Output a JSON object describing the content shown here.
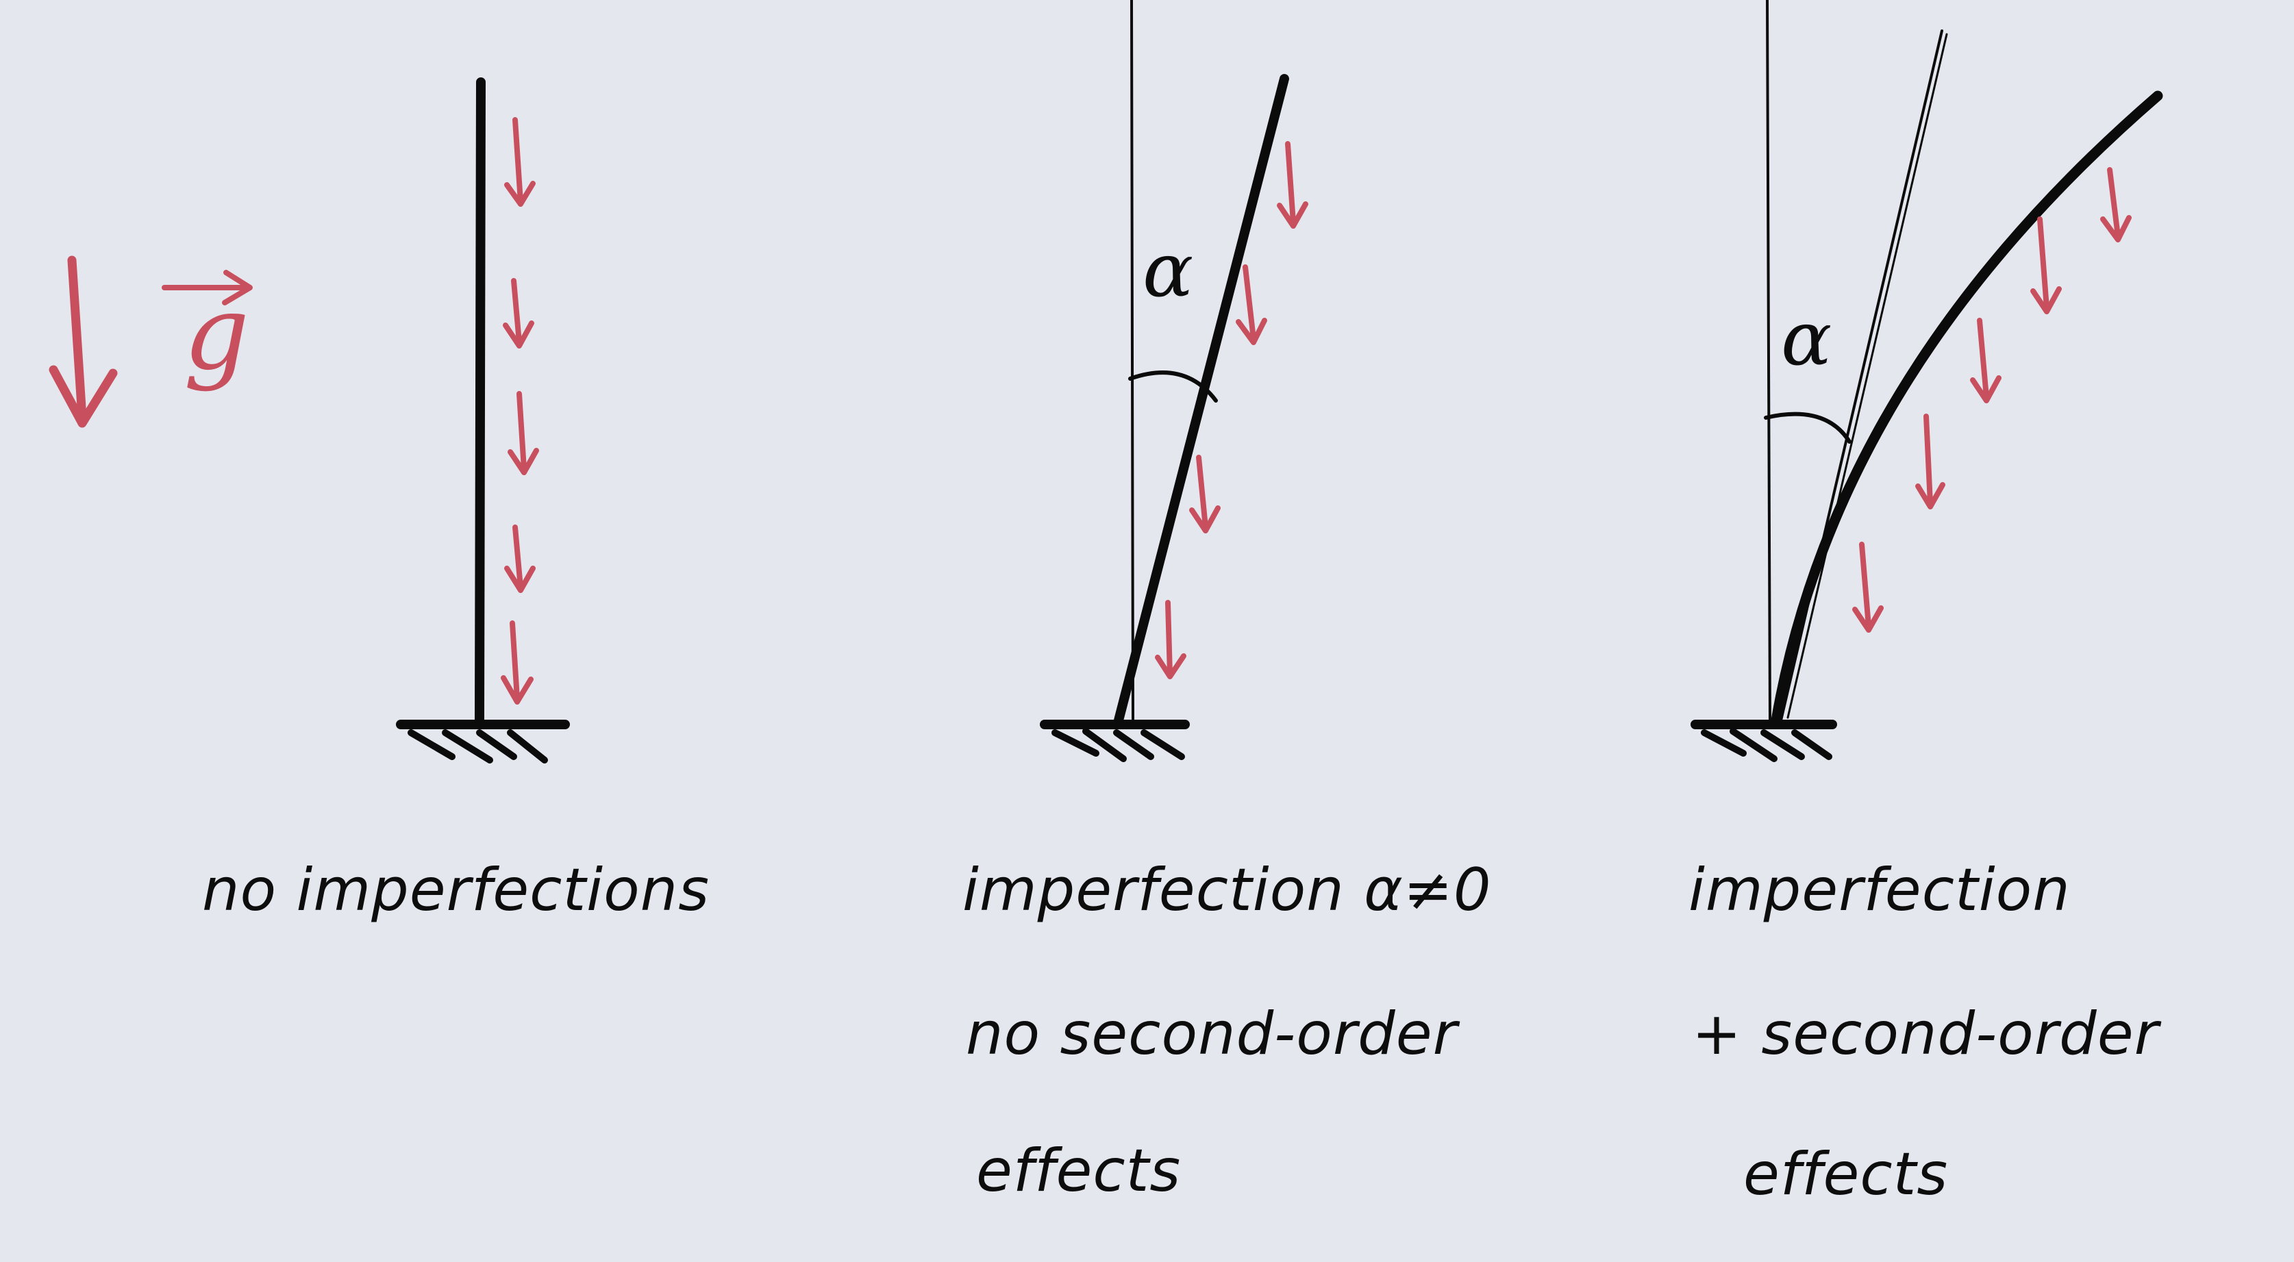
{
  "gravity": {
    "symbol": "g",
    "colors": {
      "load": "#c8505e",
      "structure": "#0b0b0b",
      "background": "#e4e8ee"
    }
  },
  "columns": [
    {
      "id": "no-imperfection",
      "lines": [
        "no imperfections"
      ]
    },
    {
      "id": "imperfection-linear",
      "angle_label": "α",
      "lines": [
        "imperfection α≠0",
        "no second-order",
        "effects"
      ]
    },
    {
      "id": "imperfection-second-order",
      "angle_label": "α",
      "lines": [
        "imperfection",
        "+ second-order",
        "effects"
      ]
    }
  ]
}
